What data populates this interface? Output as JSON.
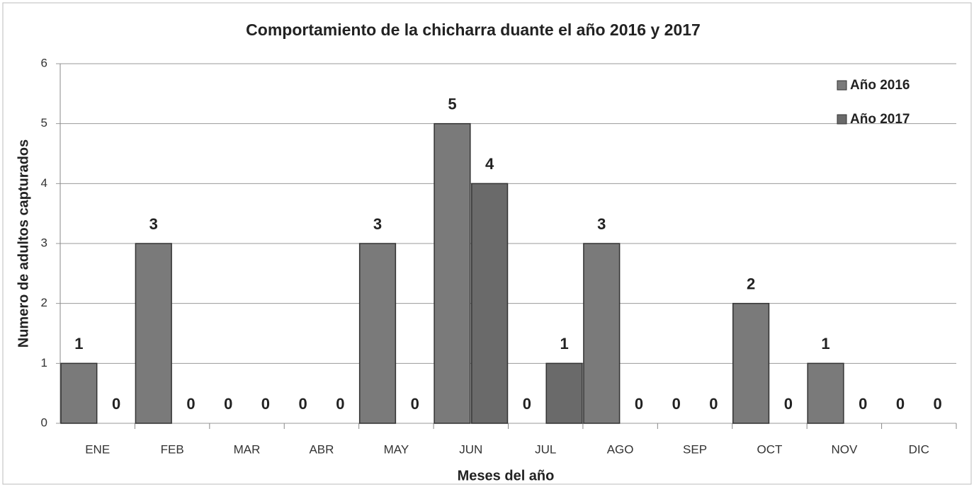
{
  "chart_data": {
    "type": "bar",
    "title": "Comportamiento de la chicharra duante el año 2016 y 2017",
    "x_label": "Meses del año",
    "y_label": "Numero de adultos capturados",
    "categories": [
      "ENE",
      "FEB",
      "MAR",
      "ABR",
      "MAY",
      "JUN",
      "JUL",
      "AGO",
      "SEP",
      "OCT",
      "NOV",
      "DIC"
    ],
    "series": [
      {
        "name": "Año 2016",
        "color": "#7a7a7a",
        "values": [
          1,
          3,
          0,
          0,
          3,
          5,
          0,
          3,
          0,
          2,
          1,
          0
        ]
      },
      {
        "name": "Año 2017",
        "color": "#6a6a6a",
        "values": [
          0,
          0,
          0,
          0,
          0,
          4,
          1,
          0,
          0,
          0,
          0,
          0
        ]
      }
    ],
    "ylim": [
      0,
      6
    ],
    "yticks": [
      0,
      1,
      2,
      3,
      4,
      5,
      6
    ],
    "grid": true,
    "legend": "upper right"
  }
}
